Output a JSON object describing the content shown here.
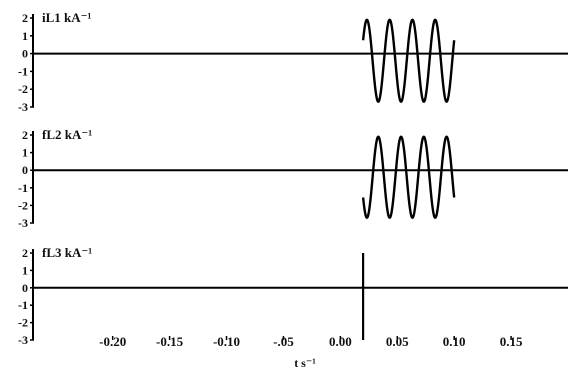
{
  "chart_data": {
    "type": "line",
    "xlabel": "t s⁻¹",
    "xlim": [
      -0.27,
      0.2
    ],
    "xticks": [
      -0.2,
      -0.15,
      -0.1,
      -0.05,
      0.0,
      0.05,
      0.1,
      0.15
    ],
    "xtick_labels": [
      "-0.20",
      "-0.15",
      "-0.10",
      "-.05",
      "0.00",
      "0.05",
      "0.10",
      "0.15"
    ],
    "grid": false,
    "panels": [
      {
        "label": "iL1 kA⁻¹",
        "ylim": [
          -3,
          2
        ],
        "yticks": [
          2,
          1,
          0,
          -1,
          -2,
          -3
        ],
        "series": [
          {
            "kind": "sine",
            "fault_start": 0.02,
            "fault_end": 0.1,
            "amplitude": 2.3,
            "offset": -0.4,
            "frequency_hz": 50,
            "phase_deg": 30,
            "baseline": 0
          }
        ]
      },
      {
        "label": "fL2 kA⁻¹",
        "ylim": [
          -3,
          2
        ],
        "yticks": [
          2,
          1,
          0,
          -1,
          -2,
          -3
        ],
        "series": [
          {
            "kind": "sine",
            "fault_start": 0.02,
            "fault_end": 0.1,
            "amplitude": 2.3,
            "offset": -0.4,
            "frequency_hz": 50,
            "phase_deg": -150,
            "baseline": 0
          }
        ]
      },
      {
        "label": "fL3 kA⁻¹",
        "ylim": [
          -3,
          2
        ],
        "yticks": [
          2,
          1,
          0,
          -1,
          -2,
          -3
        ],
        "series": [
          {
            "kind": "spike",
            "at": 0.02,
            "from": -3.0,
            "to": 2.0,
            "baseline": 0
          }
        ]
      }
    ]
  }
}
